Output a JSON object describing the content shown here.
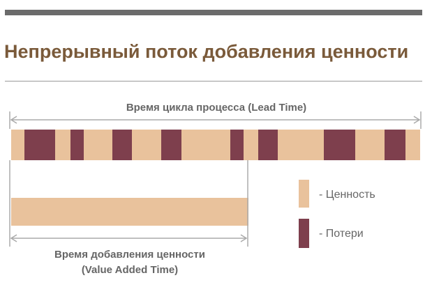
{
  "slide": {
    "title": "Непрерывный поток добавления ценности"
  },
  "diagram": {
    "lead_time_label": "Время цикла процесса (Lead Time)",
    "value_added_label_line1": "Время добавления ценности",
    "value_added_label_line2": "(Value Added Time)"
  },
  "legend": {
    "value_label": "- Ценность",
    "waste_label": "- Потери"
  },
  "colors": {
    "value": "#e9c29c",
    "waste": "#7e3f4d",
    "title": "#7a5a3a",
    "text": "#666666",
    "rule": "#6b6b6b",
    "arrow": "#aaaaaa"
  }
}
